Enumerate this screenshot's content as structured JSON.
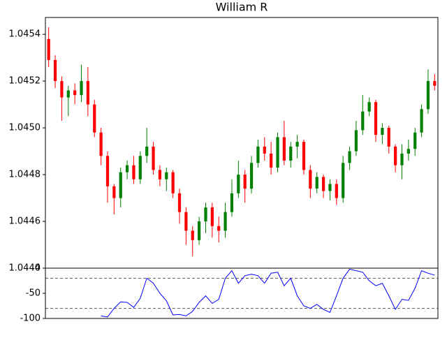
{
  "chart_data": [
    {
      "type": "candlestick",
      "title": "William R",
      "up_color": "#008000",
      "down_color": "#ff0000",
      "open": [
        1.04538,
        1.04529,
        1.0452,
        1.04513,
        1.04516,
        1.04514,
        1.0452,
        1.0451,
        1.04498,
        1.04488,
        1.04475,
        1.0447,
        1.04481,
        1.04484,
        1.04478,
        1.04488,
        1.04492,
        1.04482,
        1.04478,
        1.04481,
        1.04472,
        1.04464,
        1.04456,
        1.04452,
        1.0446,
        1.04466,
        1.04458,
        1.04456,
        1.04464,
        1.04472,
        1.0448,
        1.04474,
        1.04485,
        1.04492,
        1.04489,
        1.04483,
        1.04496,
        1.04486,
        1.04492,
        1.04494,
        1.04482,
        1.04474,
        1.04479,
        1.04473,
        1.04476,
        1.0447,
        1.04485,
        1.0449,
        1.04499,
        1.04507,
        1.04511,
        1.04497,
        1.045,
        1.04492,
        1.04484,
        1.04489,
        1.04491,
        1.04498,
        1.04508,
        1.0452
      ],
      "high": [
        1.04543,
        1.04531,
        1.04522,
        1.04518,
        1.04519,
        1.04527,
        1.04526,
        1.04512,
        1.045,
        1.0449,
        1.04476,
        1.04483,
        1.04486,
        1.04488,
        1.0449,
        1.045,
        1.04494,
        1.04484,
        1.04483,
        1.04482,
        1.04474,
        1.04466,
        1.04458,
        1.04462,
        1.04468,
        1.04468,
        1.04462,
        1.04468,
        1.04478,
        1.04486,
        1.04482,
        1.04488,
        1.04495,
        1.04496,
        1.04494,
        1.04498,
        1.04503,
        1.04494,
        1.04497,
        1.04495,
        1.04484,
        1.04481,
        1.0448,
        1.04478,
        1.04478,
        1.04488,
        1.04492,
        1.04503,
        1.04514,
        1.04513,
        1.04512,
        1.04502,
        1.04501,
        1.04493,
        1.04493,
        1.04495,
        1.045,
        1.0451,
        1.04525,
        1.04523
      ],
      "low": [
        1.04526,
        1.04517,
        1.04503,
        1.04505,
        1.0451,
        1.04511,
        1.04505,
        1.04496,
        1.04484,
        1.04468,
        1.04463,
        1.04466,
        1.04478,
        1.04476,
        1.04476,
        1.04485,
        1.0448,
        1.04475,
        1.04473,
        1.0447,
        1.04459,
        1.0445,
        1.04445,
        1.0445,
        1.04455,
        1.04453,
        1.04451,
        1.04453,
        1.04462,
        1.0447,
        1.04468,
        1.04472,
        1.04483,
        1.04486,
        1.0448,
        1.04481,
        1.04484,
        1.04483,
        1.04487,
        1.0448,
        1.0447,
        1.04472,
        1.0447,
        1.04469,
        1.04467,
        1.04468,
        1.04482,
        1.04488,
        1.04497,
        1.04505,
        1.04494,
        1.04493,
        1.04489,
        1.04481,
        1.04478,
        1.04486,
        1.04488,
        1.04496,
        1.04506,
        1.04516
      ],
      "close": [
        1.04529,
        1.0452,
        1.04513,
        1.04516,
        1.04514,
        1.0452,
        1.0451,
        1.04498,
        1.04488,
        1.04475,
        1.0447,
        1.04481,
        1.04484,
        1.04478,
        1.04488,
        1.04492,
        1.04482,
        1.04478,
        1.04481,
        1.04472,
        1.04464,
        1.04456,
        1.04452,
        1.0446,
        1.04466,
        1.04458,
        1.04456,
        1.04464,
        1.04472,
        1.0448,
        1.04474,
        1.04485,
        1.04492,
        1.04489,
        1.04483,
        1.04496,
        1.04486,
        1.04492,
        1.04494,
        1.04482,
        1.04474,
        1.04479,
        1.04473,
        1.04476,
        1.0447,
        1.04485,
        1.0449,
        1.04499,
        1.04507,
        1.04511,
        1.04497,
        1.045,
        1.04492,
        1.04484,
        1.04489,
        1.04491,
        1.04498,
        1.04508,
        1.0452,
        1.04518
      ],
      "ylim": [
        1.0444,
        1.045472
      ],
      "yticks": [
        1.0444,
        1.0446,
        1.0448,
        {
          "value": 1.045,
          "label": "1.0450"
        },
        1.0452,
        1.0454
      ]
    },
    {
      "type": "line",
      "color": "#0000ff",
      "values": [
        null,
        null,
        null,
        null,
        null,
        null,
        null,
        null,
        -95,
        -97,
        -80,
        -67,
        -68,
        -78,
        -60,
        -20,
        -30,
        -50,
        -65,
        -93,
        -92,
        -95,
        -86,
        -68,
        -55,
        -70,
        -62,
        -20,
        -5,
        -30,
        -15,
        -12,
        -15,
        -30,
        -10,
        -8,
        -35,
        -20,
        -55,
        -75,
        -80,
        -72,
        -82,
        -88,
        -55,
        -20,
        -2,
        -5,
        -8,
        -25,
        -35,
        -30,
        -55,
        -82,
        -62,
        -64,
        -40,
        -5,
        -10,
        -14
      ],
      "ylim": [
        -100,
        0
      ],
      "yticks": [
        -100,
        -50,
        0
      ],
      "hlines": [
        -20,
        -80
      ]
    }
  ]
}
